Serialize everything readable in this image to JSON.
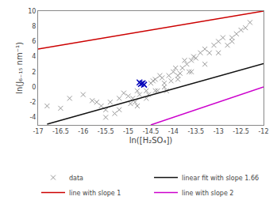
{
  "chart_data": {
    "type": "scatter",
    "xlabel": "ln([H₂SO₄])",
    "ylabel": "ln(J₆₋₁₅ nm⁻¹)",
    "xlim": [
      -17,
      -12
    ],
    "ylim": [
      -5,
      10
    ],
    "xticks": [
      -17,
      -16.5,
      -16,
      -15.5,
      -15,
      -14.5,
      -14,
      -13.5,
      -13,
      -12.5,
      -12
    ],
    "yticks": [
      -4,
      -2,
      0,
      2,
      4,
      6,
      8,
      10
    ],
    "grid": false,
    "legend": "lower right",
    "series": [
      {
        "name": "data",
        "type": "scatter",
        "marker": "x",
        "color": "#999999",
        "x": [
          -16.8,
          -16.5,
          -16.3,
          -16.0,
          -15.8,
          -15.7,
          -15.6,
          -15.5,
          -15.4,
          -15.3,
          -15.2,
          -15.1,
          -15.0,
          -14.95,
          -14.9,
          -14.85,
          -14.8,
          -14.75,
          -14.7,
          -14.65,
          -14.6,
          -14.55,
          -14.5,
          -14.45,
          -14.4,
          -14.35,
          -14.3,
          -14.25,
          -14.2,
          -14.15,
          -14.1,
          -14.05,
          -14.0,
          -13.95,
          -13.9,
          -13.85,
          -13.8,
          -13.75,
          -13.7,
          -13.65,
          -13.6,
          -13.55,
          -13.5,
          -13.4,
          -13.3,
          -13.2,
          -13.1,
          -13.0,
          -12.9,
          -12.8,
          -12.7,
          -12.6,
          -12.5,
          -12.4,
          -12.3,
          -15.5,
          -15.2,
          -14.8,
          -14.6,
          -14.4,
          -14.2,
          -13.9,
          -13.6,
          -13.3,
          -13.0,
          -12.7
        ],
        "values": [
          -2.5,
          -2.8,
          -1.5,
          -1.0,
          -1.8,
          -2.0,
          -2.5,
          -3.0,
          -2.0,
          -3.5,
          -1.5,
          -0.8,
          -1.2,
          -2.2,
          -1.5,
          -2.0,
          -0.5,
          -1.0,
          0.5,
          0.3,
          -0.5,
          -1.0,
          0.5,
          0.8,
          1.0,
          -0.5,
          1.5,
          1.2,
          0.5,
          -0.5,
          1.5,
          0.8,
          2.0,
          2.5,
          1.5,
          1.8,
          2.5,
          3.5,
          3.0,
          2.0,
          3.5,
          4.0,
          3.8,
          4.5,
          5.0,
          4.5,
          5.5,
          6.0,
          6.5,
          5.5,
          6.5,
          7.0,
          7.5,
          7.8,
          8.5,
          -4.0,
          -3.0,
          -2.5,
          -1.5,
          -0.5,
          0.0,
          1.0,
          2.0,
          3.0,
          4.5,
          6.0
        ]
      },
      {
        "type": "scatter",
        "marker": "x",
        "color": "#0000bb",
        "x": [
          -14.75,
          -14.72,
          -14.68,
          -14.65
        ],
        "values": [
          0.6,
          0.4,
          0.5,
          0.3
        ]
      },
      {
        "name": "linear fit with slope 1.66",
        "type": "line",
        "color": "#111111",
        "x": [
          -16.8,
          -12
        ],
        "values": [
          -4.888,
          3.08
        ]
      },
      {
        "name": "line with slope 1",
        "type": "line",
        "color": "#cc0000",
        "x": [
          -17,
          -12
        ],
        "values": [
          5,
          10
        ]
      },
      {
        "name": "line with slope 2",
        "type": "line",
        "color": "#cc00cc",
        "x": [
          -14.5,
          -12
        ],
        "values": [
          -5,
          0
        ]
      }
    ]
  }
}
